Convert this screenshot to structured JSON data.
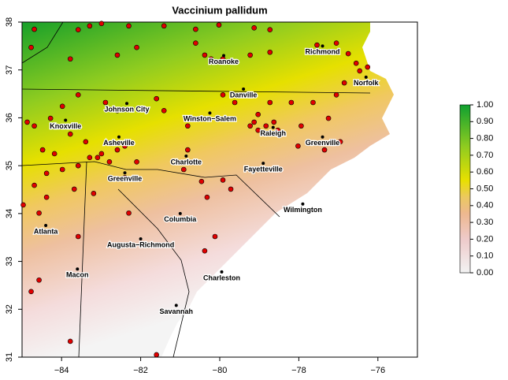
{
  "chart_data": {
    "type": "map",
    "title": "Vaccinium pallidum",
    "xlim": [
      -85,
      -75
    ],
    "ylim": [
      31,
      38
    ],
    "xticks": [
      {
        "value": -84,
        "label": "−84"
      },
      {
        "value": -82,
        "label": "−82"
      },
      {
        "value": -80,
        "label": "−80"
      },
      {
        "value": -78,
        "label": "−78"
      },
      {
        "value": -76,
        "label": "−76"
      }
    ],
    "yticks": [
      31,
      32,
      33,
      34,
      35,
      36,
      37,
      38
    ],
    "colorbar": {
      "lim": [
        0,
        1
      ],
      "ticks": [
        {
          "value": 0,
          "label": "0.00"
        },
        {
          "value": 0.1,
          "label": "0.10"
        },
        {
          "value": 0.2,
          "label": "0.20"
        },
        {
          "value": 0.3,
          "label": "0.30"
        },
        {
          "value": 0.4,
          "label": "0.40"
        },
        {
          "value": 0.5,
          "label": "0.50"
        },
        {
          "value": 0.6,
          "label": "0.60"
        },
        {
          "value": 0.7,
          "label": "0.70"
        },
        {
          "value": 0.8,
          "label": "0.80"
        },
        {
          "value": 0.9,
          "label": "0.90"
        },
        {
          "value": 1,
          "label": "1.00"
        }
      ]
    },
    "cities": [
      {
        "name": "Richmond",
        "lon": -77.4,
        "lat": 37.5
      },
      {
        "name": "Roanoke",
        "lon": -79.9,
        "lat": 37.3
      },
      {
        "name": "Norfolk",
        "lon": -76.3,
        "lat": 36.85
      },
      {
        "name": "Danville",
        "lon": -79.4,
        "lat": 36.6
      },
      {
        "name": "Johnson City",
        "lon": -82.35,
        "lat": 36.3
      },
      {
        "name": "Winston−Salem",
        "lon": -80.25,
        "lat": 36.1
      },
      {
        "name": "Knoxville",
        "lon": -83.9,
        "lat": 35.95
      },
      {
        "name": "Raleigh",
        "lon": -78.65,
        "lat": 35.8
      },
      {
        "name": "Greenville",
        "lon": -77.4,
        "lat": 35.6
      },
      {
        "name": "Asheville",
        "lon": -82.55,
        "lat": 35.6
      },
      {
        "name": "Charlotte",
        "lon": -80.85,
        "lat": 35.2
      },
      {
        "name": "Fayetteville",
        "lon": -78.9,
        "lat": 35.05
      },
      {
        "name": "Greenville",
        "lon": -82.4,
        "lat": 34.85
      },
      {
        "name": "Wilmington",
        "lon": -77.9,
        "lat": 34.2
      },
      {
        "name": "Columbia",
        "lon": -81.0,
        "lat": 34.0
      },
      {
        "name": "Atlanta",
        "lon": -84.4,
        "lat": 33.75
      },
      {
        "name": "Augusta−Richmond",
        "lon": -82.0,
        "lat": 33.47
      },
      {
        "name": "Macon",
        "lon": -83.6,
        "lat": 32.84
      },
      {
        "name": "Charleston",
        "lon": -79.95,
        "lat": 32.78
      },
      {
        "name": "Savannah",
        "lon": -81.1,
        "lat": 32.08
      }
    ],
    "series": [
      {
        "color": "#e00000",
        "x": [
          -84.69,
          -83.58,
          -83.29,
          -82.99,
          -82.3,
          -81.41,
          -80.61,
          -80.02,
          -79.13,
          -78.73,
          -84.77,
          -83.78,
          -82.59,
          -82.1,
          -80.61,
          -80.38,
          -80.22,
          -79.92,
          -79.23,
          -78.73,
          -77.54,
          -77.05,
          -76.75,
          -76.55,
          -76.46,
          -76.26,
          -76.85,
          -77.05,
          -77.64,
          -78.19,
          -78.73,
          -79.03,
          -79.13,
          -79.23,
          -79.03,
          -78.83,
          -78.63,
          -78.53,
          -79.62,
          -79.92,
          -80.81,
          -81.41,
          -81.6,
          -82.59,
          -82.89,
          -83.58,
          -83.98,
          -84.28,
          -84.69,
          -84.87,
          -83.78,
          -83.39,
          -82.99,
          -83.29,
          -83.58,
          -83.98,
          -84.38,
          -84.69,
          -84.38,
          -84.97,
          -84.57,
          -83.68,
          -83.19,
          -83.09,
          -82.79,
          -82.59,
          -82.4,
          -82.1,
          -82.4,
          -80.81,
          -80.91,
          -80.46,
          -79.92,
          -80.32,
          -79.72,
          -80.12,
          -80.38,
          -82.3,
          -83.58,
          -84.57,
          -84.77,
          -83.78,
          -81.6,
          -78.02,
          -77.35,
          -76.95,
          -77.94,
          -77.25,
          -84.48,
          -84.18
        ],
        "y": [
          37.85,
          37.84,
          37.92,
          37.97,
          37.92,
          37.92,
          37.85,
          37.94,
          37.88,
          37.84,
          37.47,
          37.23,
          37.31,
          37.47,
          37.56,
          37.31,
          37.23,
          37.23,
          37.31,
          37.37,
          37.52,
          37.56,
          37.34,
          37.14,
          36.98,
          37.06,
          36.73,
          36.48,
          36.32,
          36.32,
          36.32,
          36.07,
          35.91,
          35.83,
          35.74,
          35.83,
          35.91,
          35.74,
          36.32,
          36.48,
          35.83,
          36.15,
          36.4,
          36.15,
          36.32,
          36.48,
          36.24,
          35.99,
          35.83,
          35.91,
          35.66,
          35.5,
          35.25,
          35.17,
          35.0,
          34.92,
          34.84,
          34.59,
          34.34,
          34.18,
          34.01,
          34.51,
          34.42,
          35.17,
          35.08,
          35.33,
          35.41,
          35.08,
          34.75,
          35.33,
          34.92,
          34.67,
          34.7,
          34.34,
          34.51,
          33.52,
          33.22,
          34.01,
          33.52,
          32.61,
          32.37,
          31.33,
          31.05,
          35.41,
          35.33,
          35.5,
          35.83,
          35.99,
          35.33,
          35.25
        ]
      }
    ]
  }
}
